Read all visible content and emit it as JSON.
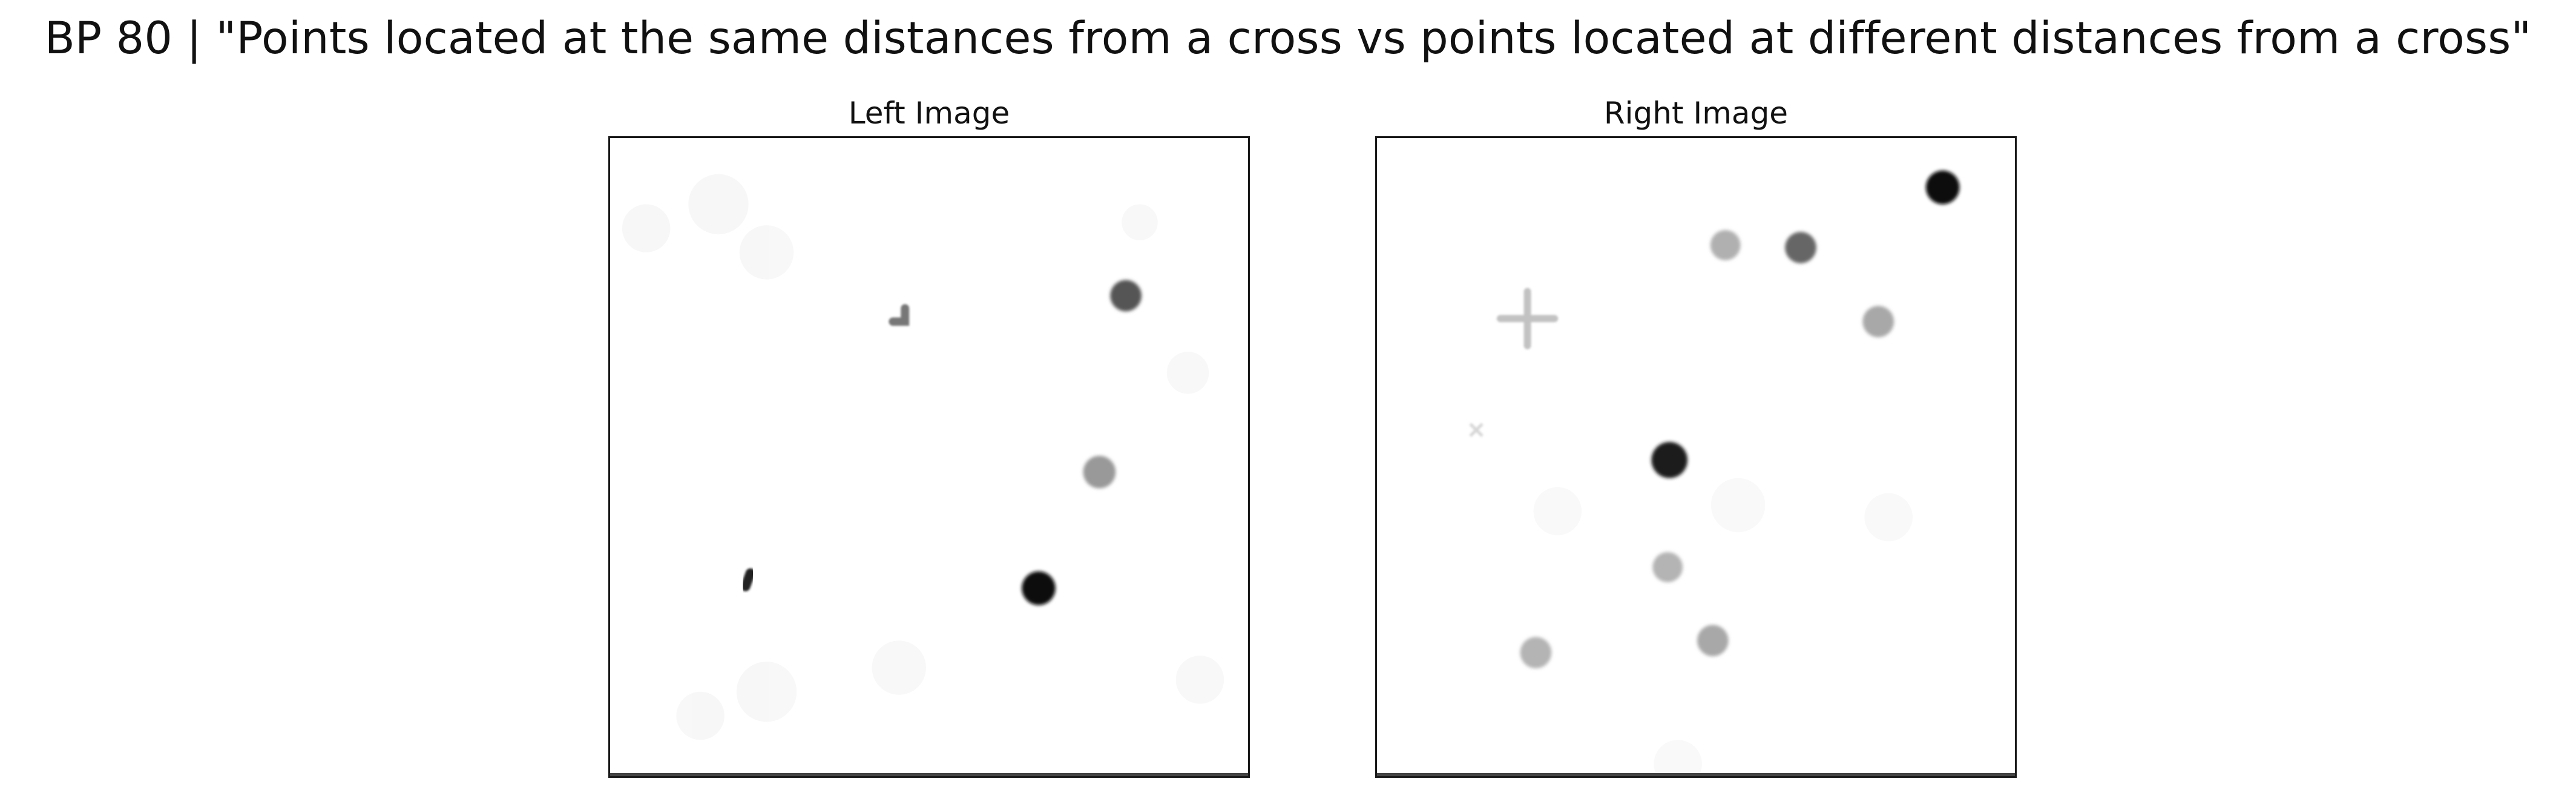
{
  "figure": {
    "title": "BP 80 | \"Points located at the same distances from a cross vs points located at different distances from a cross\""
  },
  "panels": {
    "left": {
      "title": "Left Image"
    },
    "right": {
      "title": "Right Image"
    }
  },
  "colors": {
    "background": "#ffffff",
    "frame": "#1a1a1a",
    "dark_point": "#0b0b0b",
    "mid_point": "#555555",
    "light_point": "#a8a8a8",
    "cross": "#c2c2c2"
  }
}
